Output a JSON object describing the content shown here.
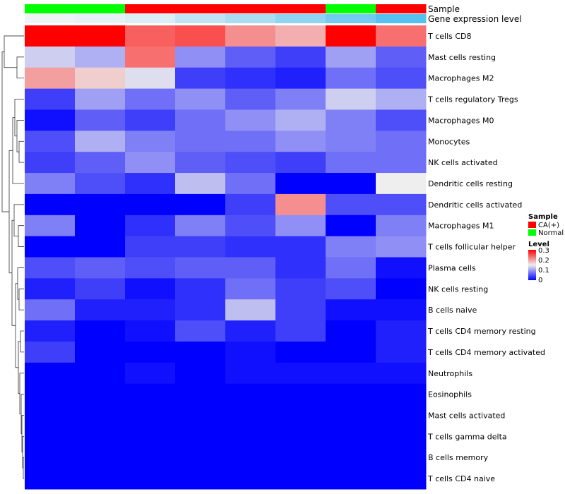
{
  "chart_data": {
    "type": "heatmap",
    "title": "",
    "annotations": [
      {
        "name": "Sample",
        "values": [
          "Normal",
          "Normal",
          "CA(+)",
          "CA(+)",
          "CA(+)",
          "CA(+)",
          "Normal",
          "CA(+)"
        ]
      },
      {
        "name": "Gene expression level",
        "values": [
          0.5,
          0.52,
          0.55,
          0.62,
          0.68,
          0.75,
          0.82,
          0.9
        ]
      }
    ],
    "rows": [
      "T cells CD8",
      "Mast cells resting",
      "Macrophages M2",
      "T cells regulatory  Tregs",
      "Macrophages M0",
      "Monocytes",
      "NK cells activated",
      "Dendritic cells resting",
      "Dendritic cells activated",
      "Macrophages M1",
      "T cells follicular helper",
      "Plasma cells",
      "NK cells resting",
      "B cells naive",
      "T cells CD4 memory resting",
      "T cells CD4 memory activated",
      "Neutrophils",
      "Eosinophils",
      "Mast cells activated",
      "T cells gamma delta",
      "B cells memory",
      "T cells CD4 naive"
    ],
    "columns": 8,
    "values": [
      [
        0.3,
        0.3,
        0.24,
        0.25,
        0.21,
        0.19,
        0.3,
        0.23
      ],
      [
        0.13,
        0.11,
        0.23,
        0.09,
        0.06,
        0.04,
        0.1,
        0.06
      ],
      [
        0.2,
        0.17,
        0.14,
        0.04,
        0.03,
        0.02,
        0.07,
        0.05
      ],
      [
        0.04,
        0.1,
        0.07,
        0.09,
        0.06,
        0.08,
        0.13,
        0.11
      ],
      [
        0.01,
        0.06,
        0.04,
        0.07,
        0.09,
        0.11,
        0.08,
        0.05
      ],
      [
        0.05,
        0.11,
        0.08,
        0.07,
        0.07,
        0.09,
        0.08,
        0.07
      ],
      [
        0.04,
        0.06,
        0.09,
        0.06,
        0.05,
        0.04,
        0.07,
        0.07
      ],
      [
        0.08,
        0.05,
        0.03,
        0.12,
        0.07,
        0.0,
        0.0,
        0.15
      ],
      [
        0.0,
        0.0,
        0.0,
        0.0,
        0.04,
        0.21,
        0.05,
        0.05
      ],
      [
        0.08,
        0.0,
        0.03,
        0.08,
        0.05,
        0.09,
        0.0,
        0.08
      ],
      [
        0.0,
        0.0,
        0.04,
        0.04,
        0.03,
        0.03,
        0.08,
        0.09
      ],
      [
        0.05,
        0.06,
        0.05,
        0.06,
        0.06,
        0.03,
        0.07,
        0.01
      ],
      [
        0.02,
        0.04,
        0.01,
        0.03,
        0.07,
        0.04,
        0.05,
        0.0
      ],
      [
        0.07,
        0.02,
        0.02,
        0.03,
        0.12,
        0.04,
        0.01,
        0.01
      ],
      [
        0.02,
        0.0,
        0.01,
        0.05,
        0.02,
        0.04,
        0.0,
        0.02
      ],
      [
        0.04,
        0.0,
        0.0,
        0.0,
        0.01,
        0.0,
        0.0,
        0.02
      ],
      [
        0.0,
        0.0,
        0.01,
        0.0,
        0.01,
        0.01,
        0.01,
        0.01
      ],
      [
        0.0,
        0.0,
        0.0,
        0.0,
        0.0,
        0.0,
        0.0,
        0.0
      ],
      [
        0.0,
        0.0,
        0.0,
        0.0,
        0.0,
        0.0,
        0.0,
        0.0
      ],
      [
        0.0,
        0.0,
        0.0,
        0.0,
        0.0,
        0.0,
        0.0,
        0.0
      ],
      [
        0.0,
        0.0,
        0.0,
        0.0,
        0.0,
        0.0,
        0.0,
        0.0
      ],
      [
        0.0,
        0.0,
        0.0,
        0.0,
        0.0,
        0.0,
        0.0,
        0.0
      ]
    ],
    "color_scale": {
      "min": 0,
      "max": 0.3,
      "stops": [
        {
          "value": 0,
          "color": "#0000ff"
        },
        {
          "value": 0.15,
          "color": "#eeeeee"
        },
        {
          "value": 0.3,
          "color": "#ff0000"
        }
      ]
    },
    "sample_colors": {
      "CA(+)": "#ff0000",
      "Normal": "#00ff00"
    },
    "expression_colors": {
      "low": "#eef3f6",
      "high": "#56c1ee"
    },
    "legend": {
      "sample_title": "Sample",
      "sample_items": [
        "CA(+)",
        "Normal"
      ],
      "level_title": "Level",
      "level_ticks": [
        "0.3",
        "0.2",
        "0.1",
        "0"
      ],
      "position": "right"
    },
    "dendrogram": "rows"
  }
}
